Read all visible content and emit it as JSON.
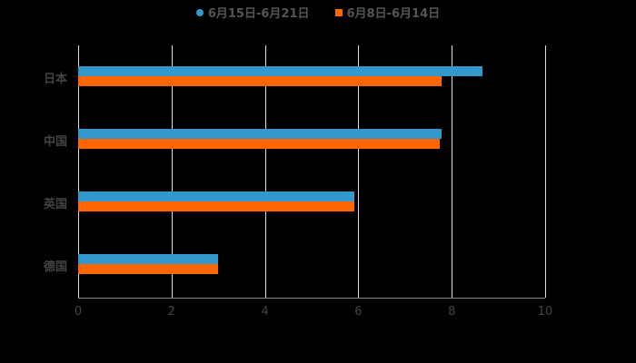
{
  "chart_data": {
    "type": "bar",
    "orientation": "horizontal",
    "categories": [
      "日本",
      "中国",
      "英国",
      "德国"
    ],
    "series": [
      {
        "name": "6月15日-6月21日",
        "color": "#3399CC",
        "values": [
          8.66,
          7.78,
          5.91,
          3.0
        ]
      },
      {
        "name": "6月8日-6月14日",
        "color": "#FF6600",
        "values": [
          7.78,
          7.74,
          5.91,
          3.0
        ]
      }
    ],
    "xlim": [
      0,
      10
    ],
    "xticks": [
      "0",
      "2",
      "4",
      "6",
      "8",
      "10"
    ],
    "grid": true,
    "legend_position": "top"
  }
}
